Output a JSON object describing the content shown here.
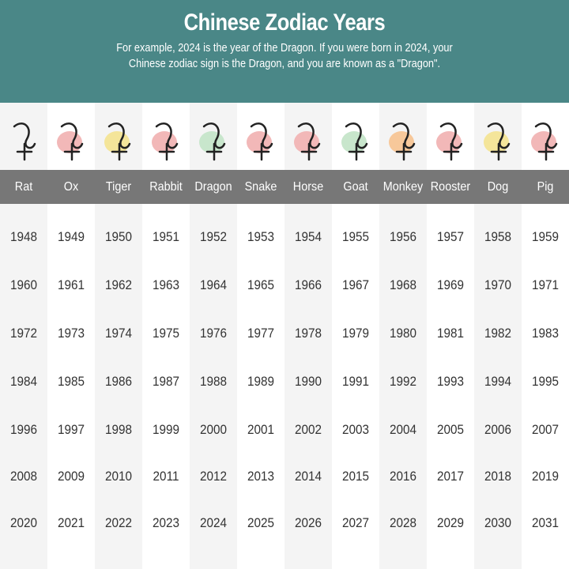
{
  "header": {
    "title": "Chinese Zodiac Years",
    "subtitle_line1": "For example, 2024 is the year of the Dragon. If you were born in 2024, your",
    "subtitle_line2": "Chinese zodiac sign is the Dragon, and you are known as a \"Dragon\"."
  },
  "colors": {
    "header_bg": "#4a8787",
    "name_bar": "#777777",
    "shade_column": "#f4f4f4"
  },
  "signs": [
    {
      "name": "Rat",
      "blob": "#f4f4f4",
      "years": [
        "1948",
        "1960",
        "1972",
        "1984",
        "1996",
        "2008",
        "2020"
      ]
    },
    {
      "name": "Ox",
      "blob": "#f2b8b8",
      "years": [
        "1949",
        "1961",
        "1973",
        "1985",
        "1997",
        "2009",
        "2021"
      ]
    },
    {
      "name": "Tiger",
      "blob": "#f4e59a",
      "years": [
        "1950",
        "1962",
        "1974",
        "1986",
        "1998",
        "2010",
        "2022"
      ]
    },
    {
      "name": "Rabbit",
      "blob": "#f2b8b8",
      "years": [
        "1951",
        "1963",
        "1975",
        "1987",
        "1999",
        "2011",
        "2023"
      ]
    },
    {
      "name": "Dragon",
      "blob": "#c8e6cc",
      "years": [
        "1952",
        "1964",
        "1976",
        "1988",
        "2000",
        "2012",
        "2024"
      ]
    },
    {
      "name": "Snake",
      "blob": "#f2b8b8",
      "years": [
        "1953",
        "1965",
        "1977",
        "1989",
        "2001",
        "2013",
        "2025"
      ]
    },
    {
      "name": "Horse",
      "blob": "#f2b8b8",
      "years": [
        "1954",
        "1966",
        "1978",
        "1990",
        "2002",
        "2014",
        "2026"
      ]
    },
    {
      "name": "Goat",
      "blob": "#c8e6cc",
      "years": [
        "1955",
        "1967",
        "1979",
        "1991",
        "2003",
        "2015",
        "2027"
      ]
    },
    {
      "name": "Monkey",
      "blob": "#f7c89a",
      "years": [
        "1956",
        "1968",
        "1980",
        "1992",
        "2004",
        "2016",
        "2028"
      ]
    },
    {
      "name": "Rooster",
      "blob": "#f2b8b8",
      "years": [
        "1957",
        "1969",
        "1981",
        "1993",
        "2005",
        "2017",
        "2029"
      ]
    },
    {
      "name": "Dog",
      "blob": "#f4e59a",
      "years": [
        "1958",
        "1970",
        "1982",
        "1994",
        "2006",
        "2018",
        "2030"
      ]
    },
    {
      "name": "Pig",
      "blob": "#f2b8b8",
      "years": [
        "1959",
        "1971",
        "1983",
        "1995",
        "2007",
        "2019",
        "2031"
      ]
    }
  ]
}
